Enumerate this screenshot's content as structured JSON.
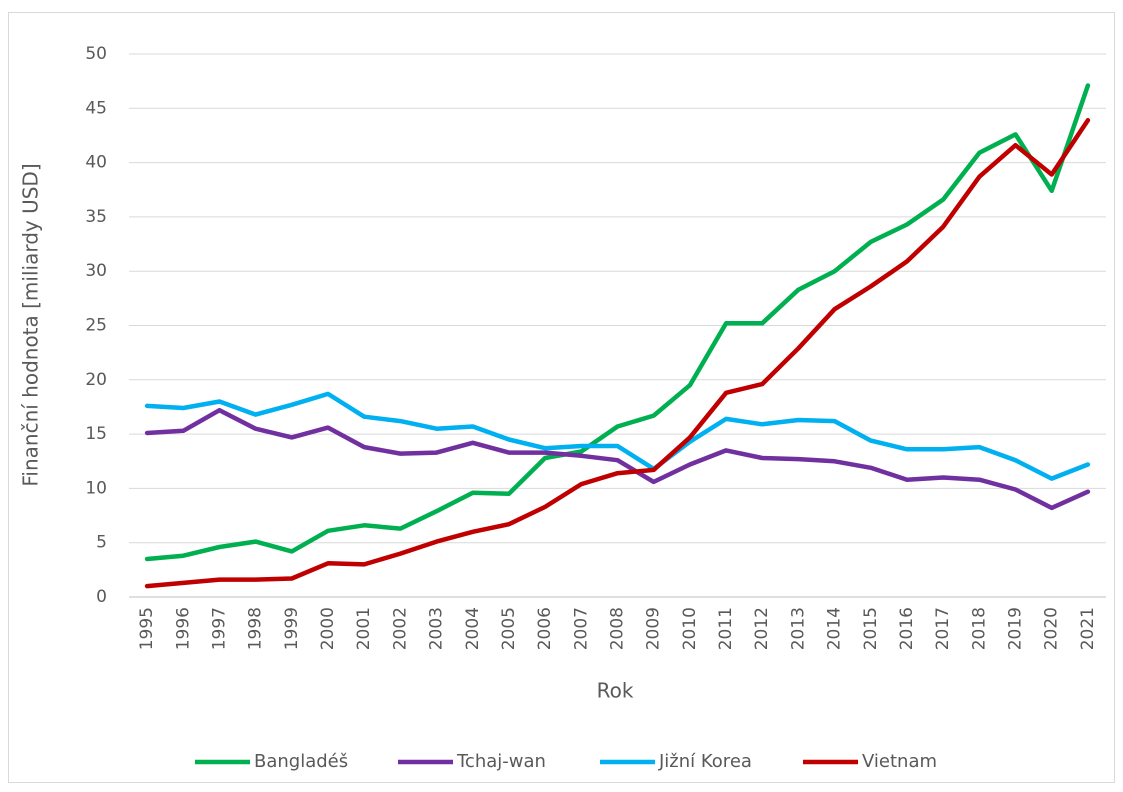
{
  "chart_data": {
    "type": "line",
    "x_label": "Rok",
    "y_label": "Finanční hodnota [miliardy USD]",
    "categories": [
      "1995",
      "1996",
      "1997",
      "1998",
      "1999",
      "2000",
      "2001",
      "2002",
      "2003",
      "2004",
      "2005",
      "2006",
      "2007",
      "2008",
      "2009",
      "2010",
      "2011",
      "2012",
      "2013",
      "2014",
      "2015",
      "2016",
      "2017",
      "2018",
      "2019",
      "2020",
      "2021"
    ],
    "series": [
      {
        "name": "Bangladéš",
        "color": "#00b050",
        "values": [
          3.5,
          3.8,
          4.6,
          5.1,
          4.2,
          6.1,
          6.6,
          6.3,
          7.9,
          9.6,
          9.5,
          12.8,
          13.4,
          15.7,
          16.7,
          19.5,
          25.2,
          25.2,
          28.3,
          30.0,
          32.7,
          34.3,
          36.6,
          40.9,
          42.6,
          37.4,
          47.1
        ]
      },
      {
        "name": "Tchaj-wan",
        "color": "#7030a0",
        "values": [
          15.1,
          15.3,
          17.2,
          15.5,
          14.7,
          15.6,
          13.8,
          13.2,
          13.3,
          14.2,
          13.3,
          13.3,
          13.0,
          12.6,
          10.6,
          12.2,
          13.5,
          12.8,
          12.7,
          12.5,
          11.9,
          10.8,
          11.0,
          10.8,
          9.9,
          8.2,
          9.7
        ]
      },
      {
        "name": "Jižní Korea",
        "color": "#00b0f0",
        "values": [
          17.6,
          17.4,
          18.0,
          16.8,
          17.7,
          18.7,
          16.6,
          16.2,
          15.5,
          15.7,
          14.5,
          13.7,
          13.9,
          13.9,
          11.8,
          14.3,
          16.4,
          15.9,
          16.3,
          16.2,
          14.4,
          13.6,
          13.6,
          13.8,
          12.6,
          10.9,
          12.2
        ]
      },
      {
        "name": "Vietnam",
        "color": "#c00000",
        "values": [
          1.0,
          1.3,
          1.6,
          1.6,
          1.7,
          3.1,
          3.0,
          4.0,
          5.1,
          6.0,
          6.7,
          8.3,
          10.4,
          11.4,
          11.7,
          14.7,
          18.8,
          19.6,
          22.9,
          26.5,
          28.6,
          30.9,
          34.1,
          38.7,
          41.6,
          38.9,
          43.9
        ]
      }
    ],
    "ylim": [
      0,
      50
    ],
    "yticks": [
      0,
      5,
      10,
      15,
      20,
      25,
      30,
      35,
      40,
      45,
      50
    ],
    "grid": true,
    "legend": "bottom"
  }
}
